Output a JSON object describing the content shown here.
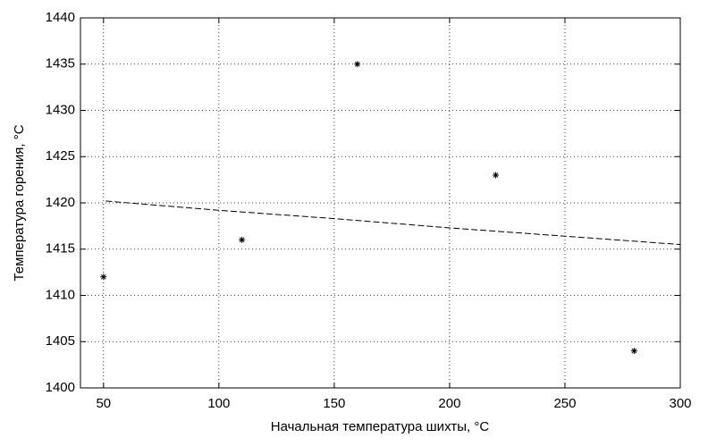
{
  "chart_data": {
    "type": "scatter",
    "xlabel": "Начальная температура шихты, °C",
    "ylabel": "Температура горения, °C",
    "xlim": [
      40,
      300
    ],
    "xticks": [
      50,
      100,
      150,
      200,
      250,
      300
    ],
    "ylim": [
      1400,
      1440
    ],
    "yticks": [
      1400,
      1405,
      1410,
      1415,
      1420,
      1425,
      1430,
      1435,
      1440
    ],
    "grid": true,
    "series": [
      {
        "type": "scatter",
        "color": "#000000",
        "x": [
          50,
          110,
          160,
          220,
          280
        ],
        "values": [
          1412,
          1416,
          1435,
          1423,
          1404
        ]
      },
      {
        "type": "line",
        "color": "#000000",
        "dashed": true,
        "x": [
          51,
          100,
          150,
          200,
          250,
          300
        ],
        "values": [
          1420.2,
          1419.2,
          1418.3,
          1417.3,
          1416.4,
          1415.5
        ]
      }
    ]
  }
}
